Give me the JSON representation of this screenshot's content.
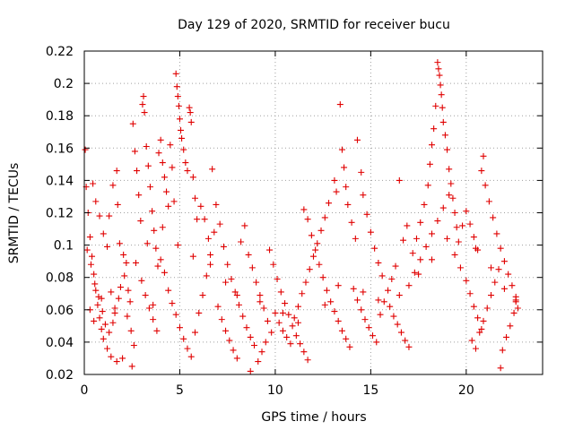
{
  "chart_data": {
    "type": "scatter",
    "title": "Day 129 of 2020, SRMTID for receiver bucu",
    "xlabel": "GPS time / hours",
    "ylabel": "SRMTID / TECUs",
    "xlim": [
      0,
      24
    ],
    "ylim": [
      0.02,
      0.22
    ],
    "xticks": [
      0,
      5,
      10,
      15,
      20
    ],
    "yticks": [
      0.02,
      0.04,
      0.06,
      0.08,
      0.1,
      0.12,
      0.14,
      0.16,
      0.18,
      0.2,
      0.22
    ],
    "x_tick_labels": [
      "0",
      "5",
      "10",
      "15",
      "20"
    ],
    "y_tick_labels": [
      "0.02",
      "0.04",
      "0.06",
      "0.08",
      "0.1",
      "0.12",
      "0.14",
      "0.16",
      "0.18",
      "0.2",
      "0.22"
    ],
    "grid": true,
    "marker": "+",
    "color": "#e00000",
    "series": [
      {
        "points": [
          [
            0.05,
            0.159
          ],
          [
            0.1,
            0.136
          ],
          [
            0.2,
            0.12
          ],
          [
            0.3,
            0.105
          ],
          [
            0.4,
            0.093
          ],
          [
            0.5,
            0.082
          ],
          [
            0.6,
            0.072
          ],
          [
            0.7,
            0.063
          ],
          [
            0.8,
            0.055
          ],
          [
            0.9,
            0.048
          ],
          [
            1.0,
            0.042
          ],
          [
            1.2,
            0.036
          ],
          [
            1.4,
            0.031
          ],
          [
            1.7,
            0.028
          ],
          [
            2.0,
            0.03
          ],
          [
            0.15,
            0.097
          ],
          [
            0.35,
            0.088
          ],
          [
            0.55,
            0.076
          ],
          [
            0.75,
            0.068
          ],
          [
            0.95,
            0.059
          ],
          [
            1.1,
            0.051
          ],
          [
            1.3,
            0.046
          ],
          [
            1.5,
            0.052
          ],
          [
            1.6,
            0.061
          ],
          [
            1.8,
            0.067
          ],
          [
            1.9,
            0.074
          ],
          [
            2.1,
            0.081
          ],
          [
            2.2,
            0.089
          ],
          [
            2.3,
            0.072
          ],
          [
            2.4,
            0.065
          ],
          [
            0.45,
            0.138
          ],
          [
            0.6,
            0.127
          ],
          [
            0.8,
            0.118
          ],
          [
            1.0,
            0.107
          ],
          [
            1.2,
            0.099
          ],
          [
            1.3,
            0.118
          ],
          [
            1.5,
            0.137
          ],
          [
            1.7,
            0.146
          ],
          [
            1.75,
            0.125
          ],
          [
            1.85,
            0.101
          ],
          [
            2.05,
            0.094
          ],
          [
            2.25,
            0.056
          ],
          [
            2.45,
            0.047
          ],
          [
            2.5,
            0.025
          ],
          [
            2.6,
            0.038
          ],
          [
            2.55,
            0.175
          ],
          [
            2.65,
            0.158
          ],
          [
            2.75,
            0.146
          ],
          [
            2.85,
            0.131
          ],
          [
            2.95,
            0.115
          ],
          [
            3.05,
            0.187
          ],
          [
            3.1,
            0.192
          ],
          [
            3.15,
            0.182
          ],
          [
            3.25,
            0.161
          ],
          [
            3.35,
            0.149
          ],
          [
            3.45,
            0.136
          ],
          [
            3.55,
            0.121
          ],
          [
            3.65,
            0.109
          ],
          [
            3.75,
            0.098
          ],
          [
            3.85,
            0.087
          ],
          [
            3.0,
            0.078
          ],
          [
            3.2,
            0.069
          ],
          [
            3.4,
            0.061
          ],
          [
            3.6,
            0.054
          ],
          [
            3.8,
            0.047
          ],
          [
            3.9,
            0.157
          ],
          [
            4.0,
            0.165
          ],
          [
            4.1,
            0.151
          ],
          [
            4.2,
            0.142
          ],
          [
            4.3,
            0.133
          ],
          [
            4.4,
            0.124
          ],
          [
            4.5,
            0.162
          ],
          [
            4.6,
            0.148
          ],
          [
            4.7,
            0.127
          ],
          [
            4.8,
            0.206
          ],
          [
            4.85,
            0.198
          ],
          [
            4.9,
            0.192
          ],
          [
            4.95,
            0.186
          ],
          [
            5.0,
            0.178
          ],
          [
            5.05,
            0.171
          ],
          [
            5.1,
            0.166
          ],
          [
            5.2,
            0.159
          ],
          [
            5.3,
            0.151
          ],
          [
            5.4,
            0.146
          ],
          [
            5.5,
            0.185
          ],
          [
            5.55,
            0.182
          ],
          [
            5.6,
            0.176
          ],
          [
            5.7,
            0.142
          ],
          [
            5.8,
            0.129
          ],
          [
            5.9,
            0.116
          ],
          [
            4.0,
            0.091
          ],
          [
            4.2,
            0.083
          ],
          [
            4.4,
            0.072
          ],
          [
            4.6,
            0.064
          ],
          [
            4.8,
            0.057
          ],
          [
            5.0,
            0.049
          ],
          [
            5.2,
            0.042
          ],
          [
            5.4,
            0.036
          ],
          [
            5.6,
            0.031
          ],
          [
            5.8,
            0.046
          ],
          [
            6.0,
            0.058
          ],
          [
            6.2,
            0.069
          ],
          [
            6.4,
            0.081
          ],
          [
            6.6,
            0.094
          ],
          [
            6.8,
            0.108
          ],
          [
            6.1,
            0.124
          ],
          [
            6.3,
            0.116
          ],
          [
            6.5,
            0.104
          ],
          [
            6.7,
            0.147
          ],
          [
            6.9,
            0.125
          ],
          [
            7.1,
            0.113
          ],
          [
            7.3,
            0.099
          ],
          [
            7.5,
            0.088
          ],
          [
            7.7,
            0.079
          ],
          [
            7.9,
            0.071
          ],
          [
            8.1,
            0.063
          ],
          [
            8.3,
            0.056
          ],
          [
            8.5,
            0.049
          ],
          [
            8.7,
            0.043
          ],
          [
            8.9,
            0.038
          ],
          [
            7.0,
            0.062
          ],
          [
            7.2,
            0.054
          ],
          [
            7.4,
            0.047
          ],
          [
            7.6,
            0.041
          ],
          [
            7.8,
            0.035
          ],
          [
            8.0,
            0.03
          ],
          [
            8.2,
            0.102
          ],
          [
            8.4,
            0.112
          ],
          [
            8.6,
            0.094
          ],
          [
            8.8,
            0.086
          ],
          [
            9.0,
            0.077
          ],
          [
            9.2,
            0.069
          ],
          [
            9.4,
            0.061
          ],
          [
            9.6,
            0.053
          ],
          [
            9.8,
            0.046
          ],
          [
            8.7,
            0.022
          ],
          [
            9.1,
            0.028
          ],
          [
            9.3,
            0.034
          ],
          [
            9.5,
            0.04
          ],
          [
            9.7,
            0.097
          ],
          [
            9.9,
            0.088
          ],
          [
            10.1,
            0.079
          ],
          [
            10.3,
            0.071
          ],
          [
            10.5,
            0.064
          ],
          [
            10.7,
            0.057
          ],
          [
            10.9,
            0.05
          ],
          [
            11.1,
            0.044
          ],
          [
            11.3,
            0.039
          ],
          [
            11.5,
            0.034
          ],
          [
            11.7,
            0.029
          ],
          [
            10.0,
            0.058
          ],
          [
            10.2,
            0.052
          ],
          [
            10.4,
            0.047
          ],
          [
            10.6,
            0.043
          ],
          [
            10.8,
            0.039
          ],
          [
            11.0,
            0.055
          ],
          [
            11.2,
            0.062
          ],
          [
            11.4,
            0.07
          ],
          [
            11.6,
            0.077
          ],
          [
            11.8,
            0.085
          ],
          [
            12.0,
            0.093
          ],
          [
            12.2,
            0.101
          ],
          [
            12.4,
            0.109
          ],
          [
            12.6,
            0.117
          ],
          [
            12.8,
            0.126
          ],
          [
            11.5,
            0.122
          ],
          [
            11.7,
            0.116
          ],
          [
            11.9,
            0.106
          ],
          [
            12.1,
            0.097
          ],
          [
            12.3,
            0.088
          ],
          [
            12.5,
            0.08
          ],
          [
            12.7,
            0.072
          ],
          [
            12.9,
            0.065
          ],
          [
            13.1,
            0.059
          ],
          [
            13.3,
            0.053
          ],
          [
            13.5,
            0.047
          ],
          [
            13.7,
            0.042
          ],
          [
            13.9,
            0.037
          ],
          [
            13.1,
            0.14
          ],
          [
            13.2,
            0.133
          ],
          [
            13.4,
            0.187
          ],
          [
            13.5,
            0.159
          ],
          [
            13.6,
            0.148
          ],
          [
            13.7,
            0.136
          ],
          [
            13.8,
            0.125
          ],
          [
            14.0,
            0.114
          ],
          [
            14.2,
            0.104
          ],
          [
            14.3,
            0.165
          ],
          [
            14.5,
            0.145
          ],
          [
            14.6,
            0.131
          ],
          [
            14.8,
            0.119
          ],
          [
            15.0,
            0.108
          ],
          [
            15.2,
            0.098
          ],
          [
            15.4,
            0.089
          ],
          [
            15.6,
            0.081
          ],
          [
            14.1,
            0.073
          ],
          [
            14.3,
            0.066
          ],
          [
            14.5,
            0.06
          ],
          [
            14.7,
            0.054
          ],
          [
            14.9,
            0.049
          ],
          [
            15.1,
            0.044
          ],
          [
            15.3,
            0.04
          ],
          [
            15.5,
            0.057
          ],
          [
            15.7,
            0.065
          ],
          [
            15.9,
            0.072
          ],
          [
            16.1,
            0.079
          ],
          [
            16.3,
            0.087
          ],
          [
            16.5,
            0.14
          ],
          [
            16.7,
            0.103
          ],
          [
            16.9,
            0.112
          ],
          [
            16.0,
            0.062
          ],
          [
            16.2,
            0.056
          ],
          [
            16.4,
            0.051
          ],
          [
            16.6,
            0.046
          ],
          [
            16.8,
            0.041
          ],
          [
            17.0,
            0.037
          ],
          [
            17.2,
            0.095
          ],
          [
            17.4,
            0.104
          ],
          [
            17.6,
            0.114
          ],
          [
            17.8,
            0.125
          ],
          [
            18.0,
            0.137
          ],
          [
            18.1,
            0.15
          ],
          [
            18.2,
            0.162
          ],
          [
            18.3,
            0.172
          ],
          [
            18.4,
            0.186
          ],
          [
            18.5,
            0.213
          ],
          [
            18.55,
            0.209
          ],
          [
            18.6,
            0.205
          ],
          [
            18.65,
            0.199
          ],
          [
            18.7,
            0.193
          ],
          [
            18.75,
            0.185
          ],
          [
            18.8,
            0.176
          ],
          [
            18.9,
            0.168
          ],
          [
            19.0,
            0.159
          ],
          [
            19.1,
            0.147
          ],
          [
            19.2,
            0.138
          ],
          [
            19.3,
            0.129
          ],
          [
            19.4,
            0.12
          ],
          [
            19.5,
            0.111
          ],
          [
            19.6,
            0.102
          ],
          [
            17.0,
            0.075
          ],
          [
            17.3,
            0.083
          ],
          [
            17.6,
            0.091
          ],
          [
            17.9,
            0.099
          ],
          [
            18.2,
            0.107
          ],
          [
            18.5,
            0.115
          ],
          [
            18.8,
            0.123
          ],
          [
            19.1,
            0.131
          ],
          [
            19.4,
            0.094
          ],
          [
            19.7,
            0.086
          ],
          [
            20.0,
            0.078
          ],
          [
            20.2,
            0.07
          ],
          [
            20.4,
            0.062
          ],
          [
            20.6,
            0.055
          ],
          [
            20.8,
            0.048
          ],
          [
            20.0,
            0.121
          ],
          [
            20.2,
            0.113
          ],
          [
            20.4,
            0.105
          ],
          [
            20.6,
            0.097
          ],
          [
            20.8,
            0.146
          ],
          [
            20.9,
            0.155
          ],
          [
            21.0,
            0.137
          ],
          [
            21.2,
            0.127
          ],
          [
            21.4,
            0.117
          ],
          [
            21.6,
            0.107
          ],
          [
            21.8,
            0.098
          ],
          [
            22.0,
            0.09
          ],
          [
            22.2,
            0.082
          ],
          [
            22.4,
            0.075
          ],
          [
            22.6,
            0.068
          ],
          [
            20.3,
            0.041
          ],
          [
            20.5,
            0.036
          ],
          [
            20.7,
            0.046
          ],
          [
            20.9,
            0.053
          ],
          [
            21.1,
            0.061
          ],
          [
            21.3,
            0.069
          ],
          [
            21.5,
            0.077
          ],
          [
            21.7,
            0.085
          ],
          [
            21.8,
            0.024
          ],
          [
            21.9,
            0.035
          ],
          [
            22.1,
            0.043
          ],
          [
            22.3,
            0.05
          ],
          [
            22.5,
            0.058
          ],
          [
            22.6,
            0.066
          ],
          [
            22.7,
            0.061
          ],
          [
            0.3,
            0.06
          ],
          [
            0.9,
            0.067
          ],
          [
            1.6,
            0.058
          ],
          [
            2.7,
            0.089
          ],
          [
            3.3,
            0.101
          ],
          [
            4.1,
            0.111
          ],
          [
            4.9,
            0.1
          ],
          [
            5.7,
            0.093
          ],
          [
            6.6,
            0.088
          ],
          [
            7.4,
            0.077
          ],
          [
            8.0,
            0.069
          ],
          [
            9.2,
            0.065
          ],
          [
            10.4,
            0.058
          ],
          [
            11.2,
            0.052
          ],
          [
            12.6,
            0.063
          ],
          [
            13.3,
            0.075
          ],
          [
            14.6,
            0.071
          ],
          [
            15.4,
            0.066
          ],
          [
            16.5,
            0.069
          ],
          [
            17.5,
            0.082
          ],
          [
            18.2,
            0.091
          ],
          [
            19.0,
            0.104
          ],
          [
            19.8,
            0.112
          ],
          [
            20.5,
            0.098
          ],
          [
            21.3,
            0.086
          ],
          [
            22.0,
            0.073
          ],
          [
            22.6,
            0.065
          ],
          [
            0.5,
            0.053
          ],
          [
            1.4,
            0.071
          ],
          [
            3.6,
            0.063
          ]
        ]
      }
    ]
  }
}
